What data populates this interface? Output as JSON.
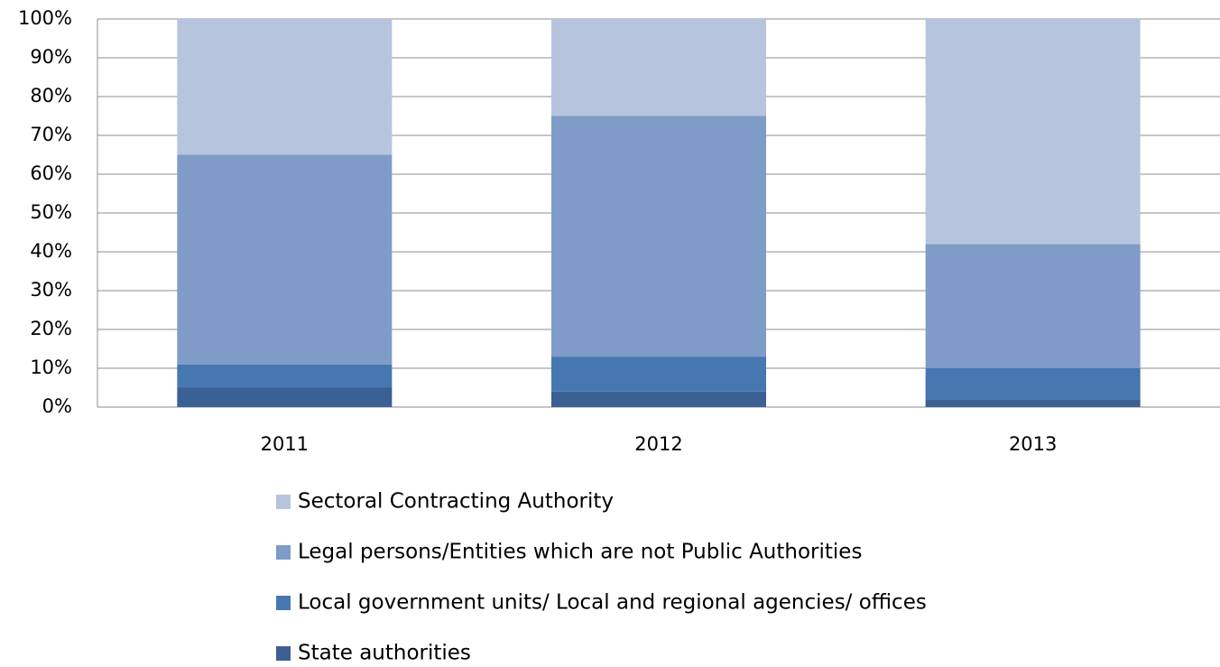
{
  "chart_data": {
    "type": "stacked_bar",
    "categories": [
      "2011",
      "2012",
      "2013"
    ],
    "series": [
      {
        "name": "State authorities",
        "color": "#3a6094",
        "values": [
          5,
          4,
          2
        ]
      },
      {
        "name": "Local government units/ Local and regional agencies/ offices",
        "color": "#4677b0",
        "values": [
          6,
          9,
          8
        ]
      },
      {
        "name": "Legal persons/Entities which are not Public Authorities",
        "color": "#7f9bc7",
        "values": [
          54,
          62,
          32
        ]
      },
      {
        "name": "Sectoral Contracting Authority",
        "color": "#b7c4de",
        "values": [
          35,
          25,
          58
        ]
      }
    ],
    "ylim": [
      0,
      100
    ],
    "yticks": [
      {
        "value": 0,
        "label": "0%"
      },
      {
        "value": 10,
        "label": "10%"
      },
      {
        "value": 20,
        "label": "20%"
      },
      {
        "value": 30,
        "label": "30%"
      },
      {
        "value": 40,
        "label": "40%"
      },
      {
        "value": 50,
        "label": "50%"
      },
      {
        "value": 60,
        "label": "60%"
      },
      {
        "value": 70,
        "label": "70%"
      },
      {
        "value": 80,
        "label": "80%"
      },
      {
        "value": 90,
        "label": "90%"
      },
      {
        "value": 100,
        "label": "100%"
      }
    ],
    "grid": true
  }
}
